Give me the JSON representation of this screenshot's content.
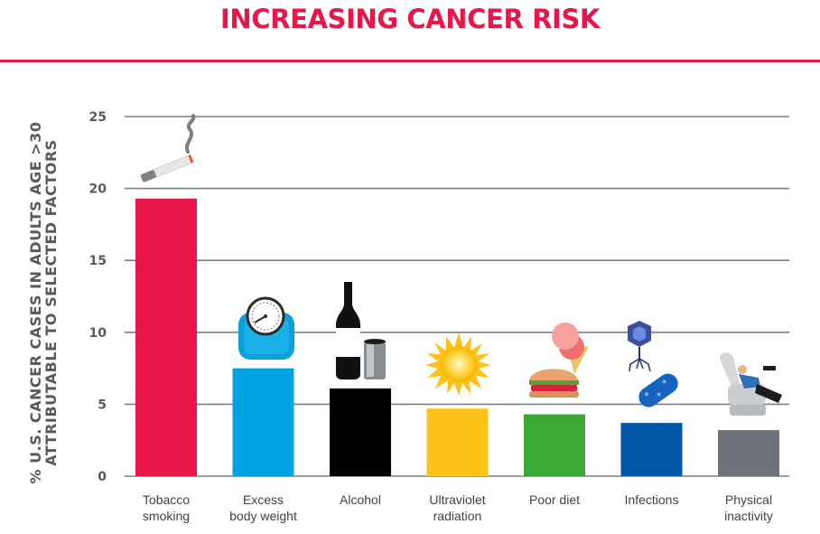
{
  "chart_data": {
    "type": "bar",
    "title": "INCREASING CANCER RISK",
    "ylabel_lines": [
      "% U.S. CANCER CASES IN ADULTS AGE >30",
      "ATTRIBUTABLE TO SELECTED FACTORS"
    ],
    "ylim": [
      0,
      25
    ],
    "yticks": [
      0,
      5,
      10,
      15,
      20,
      25
    ],
    "grid": true,
    "categories": [
      {
        "lines": [
          "Tobacco",
          "smoking"
        ],
        "value": 19.3,
        "color": "#e8174a",
        "icon": "cigarette-icon"
      },
      {
        "lines": [
          "Excess",
          "body weight"
        ],
        "value": 7.5,
        "color": "#00a3e0",
        "icon": "scale-icon"
      },
      {
        "lines": [
          "Alcohol"
        ],
        "value": 6.1,
        "color": "#000000",
        "icon": "wine-bottle-icon"
      },
      {
        "lines": [
          "Ultraviolet",
          "radiation"
        ],
        "value": 4.7,
        "color": "#fdc218",
        "icon": "sun-icon"
      },
      {
        "lines": [
          "Poor diet"
        ],
        "value": 4.3,
        "color": "#3aaa35",
        "icon": "burger-icecream-icon"
      },
      {
        "lines": [
          "Infections"
        ],
        "value": 3.7,
        "color": "#0057a4",
        "icon": "virus-bacteria-icon"
      },
      {
        "lines": [
          "Physical",
          "inactivity"
        ],
        "value": 3.2,
        "color": "#6d7378",
        "icon": "recliner-icon"
      }
    ]
  }
}
